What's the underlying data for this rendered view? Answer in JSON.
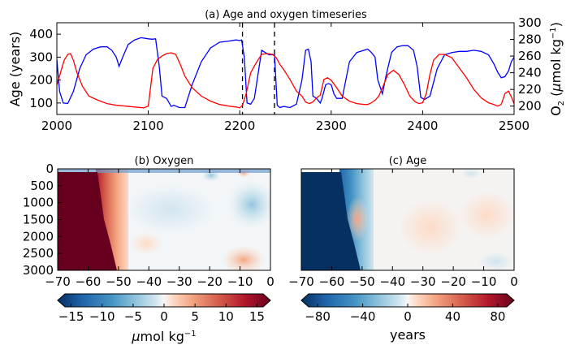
{
  "chart_data": [
    {
      "type": "line",
      "title": "(a) Age and oxygen timeseries",
      "ylabel": "Age (years)",
      "ylabel_right_parts": [
        "O",
        "2",
        " (",
        "μ",
        "mol kg",
        "−1",
        ")"
      ],
      "xlim": [
        2000,
        2500
      ],
      "ylim_left": [
        50,
        450
      ],
      "ylim_right": [
        190,
        300
      ],
      "x_ticks": [
        "2000",
        "2100",
        "2200",
        "2300",
        "2400",
        "2500"
      ],
      "y_left_ticks": [
        "100",
        "200",
        "300",
        "400"
      ],
      "y_right_ticks": [
        "200",
        "220",
        "240",
        "260",
        "280",
        "300"
      ],
      "dashed_vlines": [
        2203,
        2238
      ],
      "colors": {
        "age": "#0000ff",
        "oxygen": "#ff0000",
        "vlines": "#000000"
      },
      "series": [
        {
          "axis": "left",
          "color": "#0000ff",
          "x": [
            2000,
            2003,
            2007,
            2012,
            2018,
            2025,
            2032,
            2040,
            2048,
            2055,
            2060,
            2065,
            2068,
            2072,
            2078,
            2085,
            2092,
            2100,
            2104,
            2108,
            2112,
            2115,
            2120,
            2125,
            2128,
            2134,
            2140,
            2148,
            2158,
            2168,
            2178,
            2188,
            2196,
            2200,
            2202,
            2205,
            2208,
            2212,
            2216,
            2224,
            2232,
            2238,
            2241,
            2244,
            2248,
            2255,
            2262,
            2268,
            2272,
            2275,
            2278,
            2280,
            2284,
            2288,
            2290,
            2294,
            2297,
            2300,
            2303,
            2306,
            2312,
            2320,
            2328,
            2336,
            2340,
            2344,
            2348,
            2351,
            2356,
            2360,
            2366,
            2372,
            2378,
            2384,
            2390,
            2394,
            2398,
            2402,
            2408,
            2416,
            2424,
            2432,
            2440,
            2448,
            2456,
            2464,
            2472,
            2478,
            2482,
            2486,
            2490,
            2494,
            2497,
            2500
          ],
          "y": [
            290,
            150,
            100,
            98,
            150,
            250,
            310,
            335,
            345,
            345,
            330,
            300,
            260,
            300,
            355,
            375,
            385,
            380,
            378,
            380,
            260,
            130,
            120,
            85,
            90,
            80,
            80,
            180,
            280,
            340,
            365,
            370,
            375,
            372,
            375,
            300,
            100,
            95,
            120,
            330,
            310,
            310,
            90,
            80,
            85,
            80,
            95,
            200,
            330,
            335,
            280,
            130,
            120,
            100,
            120,
            180,
            185,
            180,
            140,
            120,
            120,
            280,
            320,
            330,
            335,
            320,
            300,
            200,
            140,
            220,
            320,
            345,
            350,
            350,
            330,
            260,
            125,
            115,
            130,
            250,
            310,
            320,
            325,
            325,
            330,
            325,
            310,
            270,
            235,
            210,
            215,
            240,
            280,
            300
          ]
        },
        {
          "axis": "right",
          "color": "#ff0000",
          "x": [
            2000,
            2004,
            2008,
            2012,
            2015,
            2018,
            2022,
            2028,
            2035,
            2045,
            2055,
            2065,
            2075,
            2085,
            2095,
            2100,
            2105,
            2110,
            2115,
            2120,
            2125,
            2130,
            2135,
            2140,
            2148,
            2158,
            2168,
            2178,
            2188,
            2196,
            2200,
            2203,
            2207,
            2212,
            2218,
            2224,
            2230,
            2236,
            2240,
            2244,
            2248,
            2255,
            2262,
            2268,
            2272,
            2276,
            2280,
            2284,
            2288,
            2292,
            2296,
            2300,
            2306,
            2312,
            2320,
            2328,
            2336,
            2340,
            2344,
            2348,
            2352,
            2356,
            2362,
            2368,
            2374,
            2380,
            2386,
            2392,
            2396,
            2400,
            2404,
            2408,
            2412,
            2418,
            2424,
            2432,
            2440,
            2448,
            2456,
            2464,
            2472,
            2478,
            2482,
            2486,
            2490,
            2494,
            2497,
            2500
          ],
          "y": [
            225,
            240,
            255,
            262,
            263,
            255,
            240,
            224,
            212,
            207,
            203,
            201,
            200,
            199,
            198,
            200,
            245,
            256,
            260,
            263,
            264,
            262,
            250,
            236,
            222,
            212,
            206,
            202,
            200,
            199,
            198,
            201,
            215,
            240,
            252,
            262,
            263,
            262,
            258,
            250,
            244,
            232,
            218,
            212,
            205,
            203,
            205,
            210,
            213,
            232,
            234,
            231,
            222,
            212,
            206,
            203,
            202,
            202,
            204,
            207,
            212,
            222,
            238,
            243,
            238,
            226,
            212,
            205,
            203,
            204,
            215,
            238,
            255,
            262,
            262,
            258,
            246,
            234,
            220,
            210,
            204,
            202,
            200,
            202,
            215,
            218,
            211,
            203
          ]
        }
      ]
    },
    {
      "type": "heatmap",
      "title": "(b) Oxygen",
      "colormap": "RdBu_r",
      "xlim": [
        -70,
        0
      ],
      "ylim": [
        3000,
        0
      ],
      "x_ticks": [
        "−70",
        "−60",
        "−50",
        "−40",
        "−30",
        "−20",
        "−10",
        "0"
      ],
      "y_ticks": [
        "0",
        "500",
        "1000",
        "1500",
        "2000",
        "2500",
        "3000"
      ],
      "colorbar_ticks": [
        "−15",
        "−10",
        "−5",
        "0",
        "5",
        "10",
        "15"
      ],
      "colorbar_range": [
        -16,
        16
      ],
      "colorbar_label_parts": [
        "μ",
        "mol kg",
        "−1"
      ]
    },
    {
      "type": "heatmap",
      "title": "(c) Age",
      "colormap": "RdBu_r",
      "xlim": [
        -70,
        0
      ],
      "ylim": [
        3000,
        0
      ],
      "x_ticks": [
        "−70",
        "−60",
        "−50",
        "−40",
        "−30",
        "−20",
        "−10",
        "0"
      ],
      "colorbar_ticks": [
        "−80",
        "−40",
        "0",
        "40",
        "80"
      ],
      "colorbar_range": [
        -88,
        88
      ],
      "colorbar_label": "years"
    }
  ]
}
